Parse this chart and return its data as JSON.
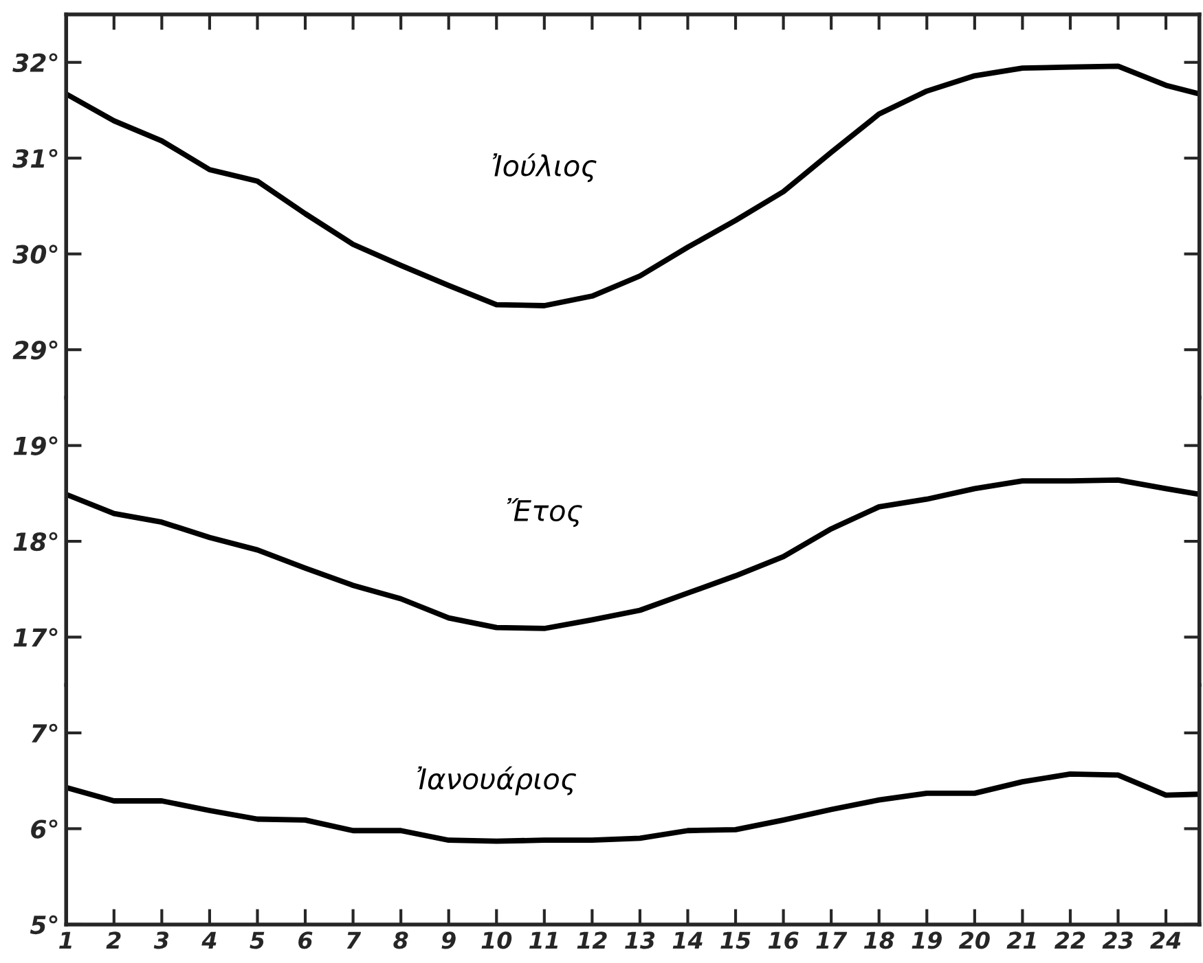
{
  "chart_data": [
    {
      "type": "line",
      "xlim": [
        1,
        24.7
      ],
      "xticks": [
        1,
        2,
        3,
        4,
        5,
        6,
        7,
        8,
        9,
        10,
        11,
        12,
        13,
        14,
        15,
        16,
        17,
        18,
        19,
        20,
        21,
        22,
        23,
        24
      ],
      "ylim": [
        28.5,
        32.5
      ],
      "yticks": [
        {
          "value": 29,
          "label": "29°"
        },
        {
          "value": 30,
          "label": "30°"
        },
        {
          "value": 31,
          "label": "31°"
        },
        {
          "value": 32,
          "label": "32°"
        }
      ],
      "tick_labels": "y",
      "grid": false,
      "legend": false,
      "x": [
        1,
        2,
        3,
        4,
        5,
        6,
        7,
        8,
        9,
        10,
        11,
        12,
        13,
        14,
        15,
        16,
        17,
        18,
        19,
        20,
        21,
        22,
        23,
        24,
        24.7
      ],
      "series": [
        {
          "name": "Ἰούλιος",
          "color": "#000000",
          "values": [
            31.67,
            31.39,
            31.18,
            30.88,
            30.76,
            30.42,
            30.1,
            29.88,
            29.67,
            29.47,
            29.46,
            29.56,
            29.77,
            30.07,
            30.35,
            30.65,
            31.06,
            31.46,
            31.7,
            31.86,
            31.94,
            31.95,
            31.96,
            31.76,
            31.67
          ]
        }
      ]
    },
    {
      "type": "line",
      "xlim": [
        1,
        24.7
      ],
      "ylim": [
        16.5,
        19.5
      ],
      "yticks": [
        {
          "value": 17,
          "label": "17°"
        },
        {
          "value": 18,
          "label": "18°"
        },
        {
          "value": 19,
          "label": "19°"
        }
      ],
      "tick_labels": "y",
      "grid": false,
      "legend": false,
      "x": [
        1,
        2,
        3,
        4,
        5,
        6,
        7,
        8,
        9,
        10,
        11,
        12,
        13,
        14,
        15,
        16,
        17,
        18,
        19,
        20,
        21,
        22,
        23,
        24,
        24.7
      ],
      "series": [
        {
          "name": "Ἔτος",
          "color": "#000000",
          "values": [
            18.49,
            18.29,
            18.2,
            18.04,
            17.91,
            17.72,
            17.54,
            17.4,
            17.2,
            17.1,
            17.09,
            17.18,
            17.28,
            17.46,
            17.64,
            17.84,
            18.13,
            18.36,
            18.44,
            18.55,
            18.63,
            18.63,
            18.64,
            18.55,
            18.49
          ]
        }
      ]
    },
    {
      "type": "line",
      "xlim": [
        1,
        24.7
      ],
      "xticks": [
        1,
        2,
        3,
        4,
        5,
        6,
        7,
        8,
        9,
        10,
        11,
        12,
        13,
        14,
        15,
        16,
        17,
        18,
        19,
        20,
        21,
        22,
        23,
        24
      ],
      "ylim": [
        5,
        7.5
      ],
      "yticks": [
        {
          "value": 5,
          "label": "5°"
        },
        {
          "value": 6,
          "label": "6°"
        },
        {
          "value": 7,
          "label": "7°"
        }
      ],
      "grid": false,
      "legend": false,
      "x": [
        1,
        2,
        3,
        4,
        5,
        6,
        7,
        8,
        9,
        10,
        11,
        12,
        13,
        14,
        15,
        16,
        17,
        18,
        19,
        20,
        21,
        22,
        23,
        24,
        24.7
      ],
      "series": [
        {
          "name": "Ἰανουάριος",
          "color": "#000000",
          "values": [
            6.43,
            6.29,
            6.29,
            6.19,
            6.1,
            6.09,
            5.98,
            5.98,
            5.88,
            5.87,
            5.88,
            5.88,
            5.9,
            5.98,
            5.99,
            6.09,
            6.2,
            6.3,
            6.37,
            6.37,
            6.49,
            6.57,
            6.56,
            6.35,
            6.36
          ]
        }
      ]
    }
  ]
}
